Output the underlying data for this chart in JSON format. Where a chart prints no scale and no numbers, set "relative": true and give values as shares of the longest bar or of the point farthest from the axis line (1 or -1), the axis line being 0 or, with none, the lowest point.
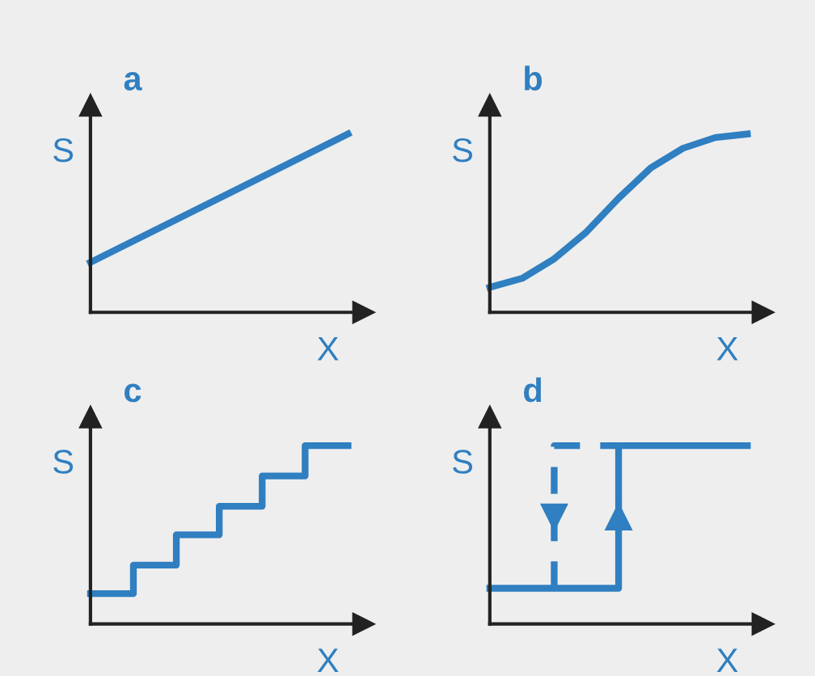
{
  "chart_data": [
    {
      "type": "line",
      "title": "a",
      "xlabel": "X",
      "ylabel": "S",
      "relative": true,
      "categories": [
        null,
        null
      ],
      "series": [
        {
          "color": "#2f7fc1",
          "values": [
            0.28,
            1
          ]
        }
      ]
    },
    {
      "type": "line",
      "title": "b",
      "xlabel": "X",
      "ylabel": "S",
      "relative": true,
      "categories": [
        null,
        null,
        null,
        null,
        null,
        null,
        null,
        null,
        null
      ],
      "series": [
        {
          "color": "#2f7fc1",
          "values": [
            0.14,
            0.19,
            0.3,
            0.45,
            0.64,
            0.81,
            0.92,
            0.98,
            1
          ]
        }
      ]
    },
    {
      "type": "step",
      "title": "c",
      "xlabel": "X",
      "ylabel": "S",
      "relative": true,
      "categories": [
        null,
        null,
        null,
        null,
        null,
        null,
        null
      ],
      "series": [
        {
          "color": "#2f7fc1",
          "values": [
            0.17,
            0.17,
            0.33,
            0.5,
            0.66,
            0.83,
            1
          ]
        }
      ]
    },
    {
      "type": "step",
      "title": "d",
      "xlabel": "X",
      "ylabel": "S",
      "relative": true,
      "categories": [
        null,
        null,
        null,
        null,
        null
      ],
      "series": [
        {
          "color": "#2f7fc1",
          "values": [
            0.2,
            0.2,
            0.2,
            1,
            1
          ]
        },
        {
          "color": "#2f7fc1",
          "line_style": "dashed",
          "values": [
            null,
            0.2,
            1,
            null,
            null
          ]
        }
      ]
    }
  ]
}
